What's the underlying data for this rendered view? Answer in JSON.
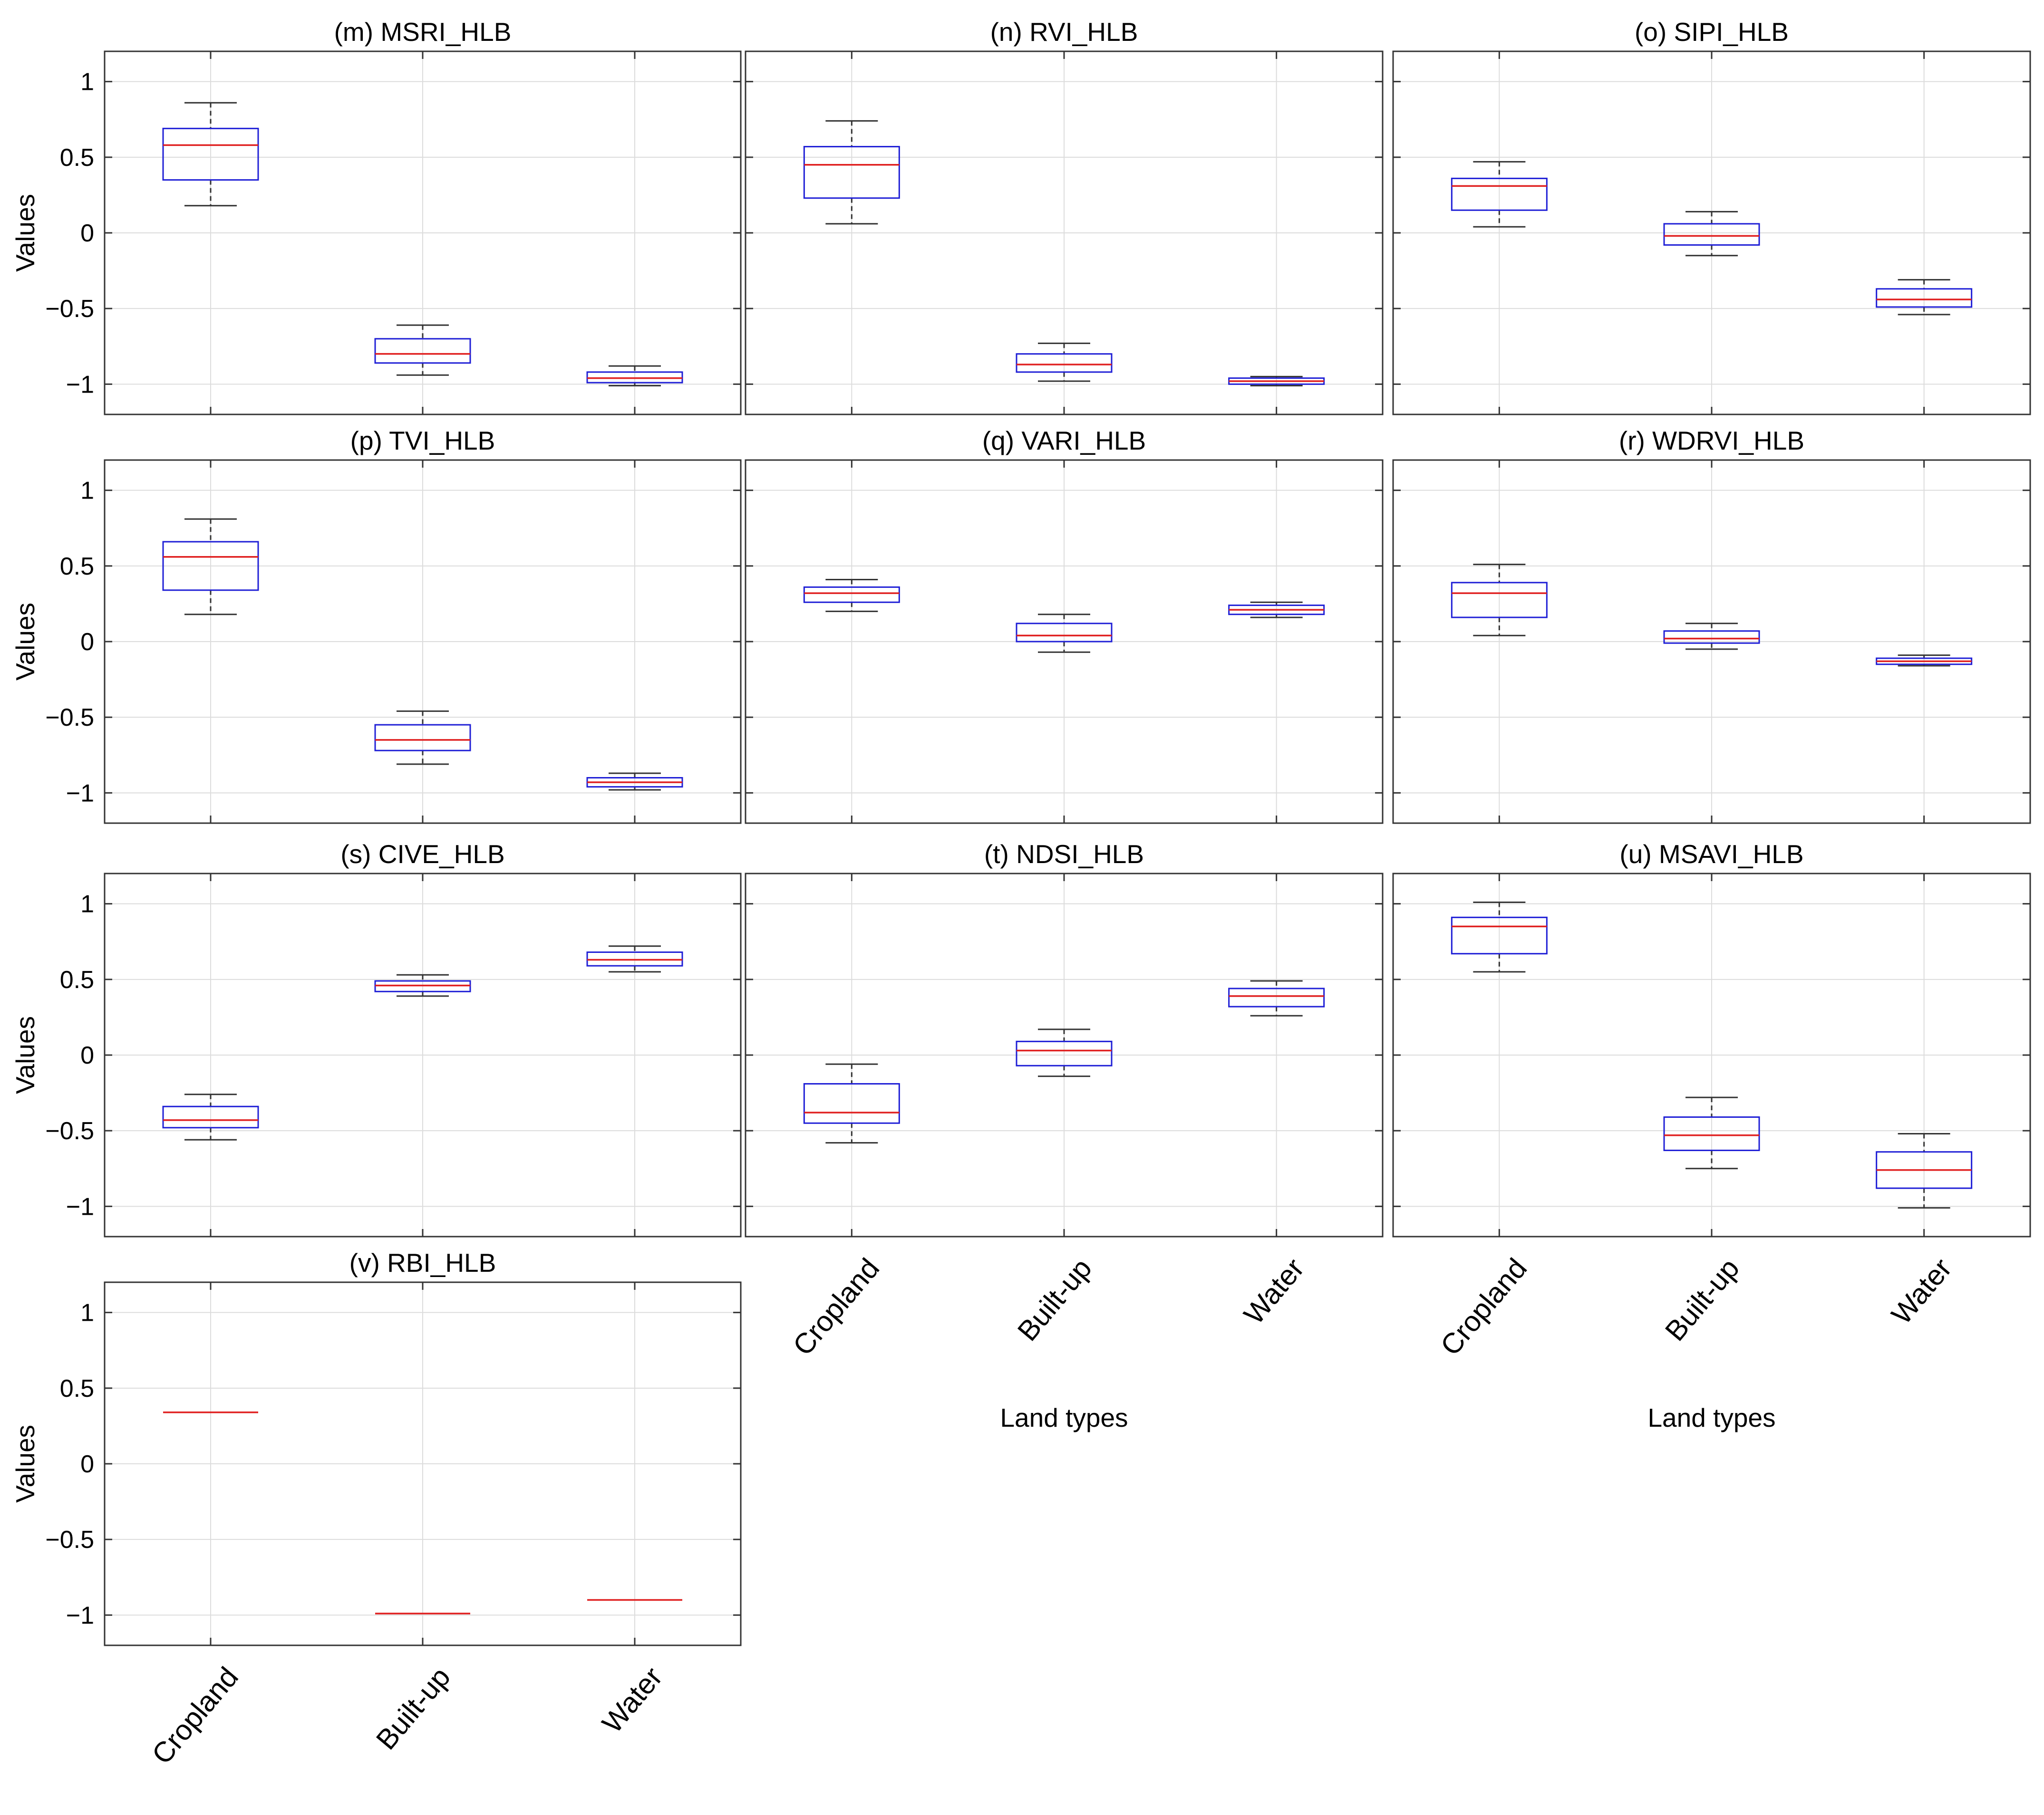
{
  "chart_data": {
    "type": "box",
    "figure_layout": "grid 3 columns x 4 rows",
    "categories": [
      "Cropland",
      "Built-up",
      "Water"
    ],
    "ylabel": "Values",
    "xlabel": "Land types",
    "ylim": [
      -1.2,
      1.2
    ],
    "yticks": [
      1,
      0.5,
      0,
      -0.5,
      -1
    ],
    "ytick_labels": [
      "1",
      "0.5",
      "0",
      "−0.5",
      "−1"
    ],
    "grid": true,
    "colors": {
      "box": "#1f1fd6",
      "median": "#e02020",
      "whisker": "#333333",
      "grid": "#dcdcdc",
      "axis": "#333333"
    },
    "panels": [
      {
        "title": "(m) MSRI_HLB",
        "ylabel": "Values",
        "boxes": [
          {
            "category": "Cropland",
            "min": 0.18,
            "q1": 0.35,
            "median": 0.58,
            "q3": 0.69,
            "max": 0.86
          },
          {
            "category": "Built-up",
            "min": -0.94,
            "q1": -0.86,
            "median": -0.8,
            "q3": -0.7,
            "max": -0.61
          },
          {
            "category": "Water",
            "min": -1.01,
            "q1": -0.99,
            "median": -0.96,
            "q3": -0.92,
            "max": -0.88
          }
        ]
      },
      {
        "title": "(n) RVI_HLB",
        "boxes": [
          {
            "category": "Cropland",
            "min": 0.06,
            "q1": 0.23,
            "median": 0.45,
            "q3": 0.57,
            "max": 0.74
          },
          {
            "category": "Built-up",
            "min": -0.98,
            "q1": -0.92,
            "median": -0.87,
            "q3": -0.8,
            "max": -0.73
          },
          {
            "category": "Water",
            "min": -1.01,
            "q1": -1.0,
            "median": -0.98,
            "q3": -0.96,
            "max": -0.95
          }
        ]
      },
      {
        "title": "(o) SIPI_HLB",
        "boxes": [
          {
            "category": "Cropland",
            "min": 0.04,
            "q1": 0.15,
            "median": 0.31,
            "q3": 0.36,
            "max": 0.47
          },
          {
            "category": "Built-up",
            "min": -0.15,
            "q1": -0.08,
            "median": -0.02,
            "q3": 0.06,
            "max": 0.14
          },
          {
            "category": "Water",
            "min": -0.54,
            "q1": -0.49,
            "median": -0.44,
            "q3": -0.37,
            "max": -0.31
          }
        ]
      },
      {
        "title": "(p) TVI_HLB",
        "ylabel": "Values",
        "boxes": [
          {
            "category": "Cropland",
            "min": 0.18,
            "q1": 0.34,
            "median": 0.56,
            "q3": 0.66,
            "max": 0.81
          },
          {
            "category": "Built-up",
            "min": -0.81,
            "q1": -0.72,
            "median": -0.65,
            "q3": -0.55,
            "max": -0.46
          },
          {
            "category": "Water",
            "min": -0.98,
            "q1": -0.96,
            "median": -0.93,
            "q3": -0.9,
            "max": -0.87
          }
        ]
      },
      {
        "title": "(q) VARI_HLB",
        "boxes": [
          {
            "category": "Cropland",
            "min": 0.2,
            "q1": 0.26,
            "median": 0.32,
            "q3": 0.36,
            "max": 0.41
          },
          {
            "category": "Built-up",
            "min": -0.07,
            "q1": 0.0,
            "median": 0.04,
            "q3": 0.12,
            "max": 0.18
          },
          {
            "category": "Water",
            "min": 0.16,
            "q1": 0.18,
            "median": 0.21,
            "q3": 0.24,
            "max": 0.26
          }
        ]
      },
      {
        "title": "(r) WDRVI_HLB",
        "boxes": [
          {
            "category": "Cropland",
            "min": 0.04,
            "q1": 0.16,
            "median": 0.32,
            "q3": 0.39,
            "max": 0.51
          },
          {
            "category": "Built-up",
            "min": -0.05,
            "q1": -0.01,
            "median": 0.02,
            "q3": 0.07,
            "max": 0.12
          },
          {
            "category": "Water",
            "min": -0.16,
            "q1": -0.15,
            "median": -0.13,
            "q3": -0.11,
            "max": -0.09
          }
        ]
      },
      {
        "title": "(s) CIVE_HLB",
        "ylabel": "Values",
        "boxes": [
          {
            "category": "Cropland",
            "min": -0.56,
            "q1": -0.48,
            "median": -0.43,
            "q3": -0.34,
            "max": -0.26
          },
          {
            "category": "Built-up",
            "min": 0.39,
            "q1": 0.42,
            "median": 0.46,
            "q3": 0.49,
            "max": 0.53
          },
          {
            "category": "Water",
            "min": 0.55,
            "q1": 0.59,
            "median": 0.63,
            "q3": 0.68,
            "max": 0.72
          }
        ]
      },
      {
        "title": "(t) NDSI_HLB",
        "boxes": [
          {
            "category": "Cropland",
            "min": -0.58,
            "q1": -0.45,
            "median": -0.38,
            "q3": -0.19,
            "max": -0.06
          },
          {
            "category": "Built-up",
            "min": -0.14,
            "q1": -0.07,
            "median": 0.03,
            "q3": 0.09,
            "max": 0.17
          },
          {
            "category": "Water",
            "min": 0.26,
            "q1": 0.32,
            "median": 0.39,
            "q3": 0.44,
            "max": 0.49
          }
        ]
      },
      {
        "title": "(u) MSAVI_HLB",
        "boxes": [
          {
            "category": "Cropland",
            "min": 0.55,
            "q1": 0.67,
            "median": 0.85,
            "q3": 0.91,
            "max": 1.01
          },
          {
            "category": "Built-up",
            "min": -0.75,
            "q1": -0.63,
            "median": -0.53,
            "q3": -0.41,
            "max": -0.28
          },
          {
            "category": "Water",
            "min": -1.01,
            "q1": -0.88,
            "median": -0.76,
            "q3": -0.64,
            "max": -0.52
          }
        ]
      },
      {
        "title": "(v) RBI_HLB",
        "ylabel": "Values",
        "boxes": [
          {
            "category": "Cropland",
            "min": 0.34,
            "q1": 0.34,
            "median": 0.34,
            "q3": 0.34,
            "max": 0.34
          },
          {
            "category": "Built-up",
            "min": -0.99,
            "q1": -0.99,
            "median": -0.99,
            "q3": -0.99,
            "max": -0.99
          },
          {
            "category": "Water",
            "min": -0.9,
            "q1": -0.9,
            "median": -0.9,
            "q3": -0.9,
            "max": -0.9
          }
        ]
      }
    ],
    "xaxis_labeled_panels": [
      "(t) NDSI_HLB",
      "(u) MSAVI_HLB",
      "(v) RBI_HLB"
    ]
  }
}
